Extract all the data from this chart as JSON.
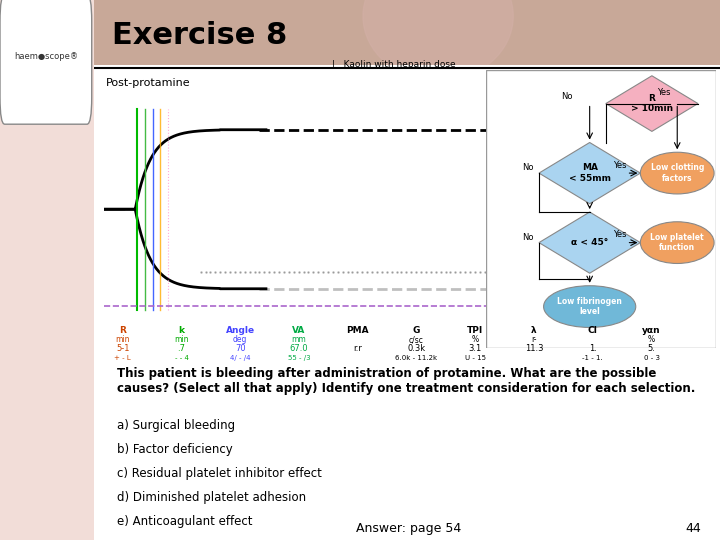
{
  "title": "Exercise 8",
  "subtitle": "Post-protamine",
  "bg_color": "#f2ddd8",
  "header_bar_color": "#c8a898",
  "main_text_bold": "This patient is bleeding after administration of protamine. What are the possible\ncauses? (Select all that apply) Identify one treatment consideration for each selection.",
  "options": [
    "a) Surgical bleeding",
    "b) Factor deficiency",
    "c) Residual platelet inhibitor effect",
    "d) Diminished platelet adhesion",
    "e) Anticoagulant effect"
  ],
  "answer_text": "Answer: page 54",
  "page_number": "44",
  "teg_label": "|   Kaolin with heparin dose",
  "param_labels": [
    "R",
    "k",
    "Angle",
    "VA",
    "PMA",
    "G",
    "TPI",
    "λ",
    "CI",
    "yαn"
  ],
  "param_units": [
    "min",
    "min",
    "deg",
    "mm",
    "",
    "c/sc",
    "%",
    "r-",
    "",
    "%"
  ],
  "param_values": [
    "5-1\n+ - L",
    ".7\n- - 4",
    "70\n4/ - /4",
    "67.0\n55 - /3",
    "r.r\n",
    "0.3k\n6.0k - 11.2k",
    "3.1\nU - 15",
    "11.3\n",
    "1.\n-1 - 1.",
    "5.\n0 - 3"
  ],
  "param_colors": [
    "#cc4400",
    "#00aa00",
    "#4444ff",
    "#00aa44",
    "black",
    "black",
    "black",
    "black",
    "black",
    "black"
  ]
}
